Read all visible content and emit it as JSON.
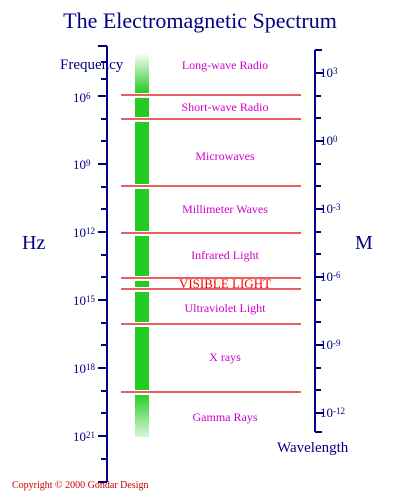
{
  "title": "The Electromagnetic Spectrum",
  "frequency_axis": {
    "label": "Frequency",
    "unit": "Hz",
    "ticks": [
      {
        "base": "10",
        "exp": "6"
      },
      {
        "base": "10",
        "exp": "9"
      },
      {
        "base": "10",
        "exp": "12"
      },
      {
        "base": "10",
        "exp": "15"
      },
      {
        "base": "10",
        "exp": "18"
      },
      {
        "base": "10",
        "exp": "21"
      }
    ]
  },
  "wavelength_axis": {
    "label": "Wavelength",
    "unit": "M",
    "ticks": [
      {
        "base": "10",
        "exp": "3"
      },
      {
        "base": "10",
        "exp": "0"
      },
      {
        "base": "10",
        "exp": "-3"
      },
      {
        "base": "10",
        "exp": "-6"
      },
      {
        "base": "10",
        "exp": "-9"
      },
      {
        "base": "10",
        "exp": "-12"
      }
    ]
  },
  "bands": [
    {
      "name": "Long-wave Radio"
    },
    {
      "name": "Short-wave Radio"
    },
    {
      "name": "Microwaves"
    },
    {
      "name": "Millimeter Waves"
    },
    {
      "name": "Infrared Light"
    },
    {
      "name": "VISIBLE LIGHT"
    },
    {
      "name": "Ultraviolet Light"
    },
    {
      "name": "X rays"
    },
    {
      "name": "Gamma Rays"
    }
  ],
  "copyright": "Copyright © 2000 Gondar Design",
  "colors": {
    "axis": "#000080",
    "band_text": "#d000d0",
    "visible_text": "#ff0000",
    "divider": "#dd0000",
    "spectrum_bar": "#22cc22"
  }
}
